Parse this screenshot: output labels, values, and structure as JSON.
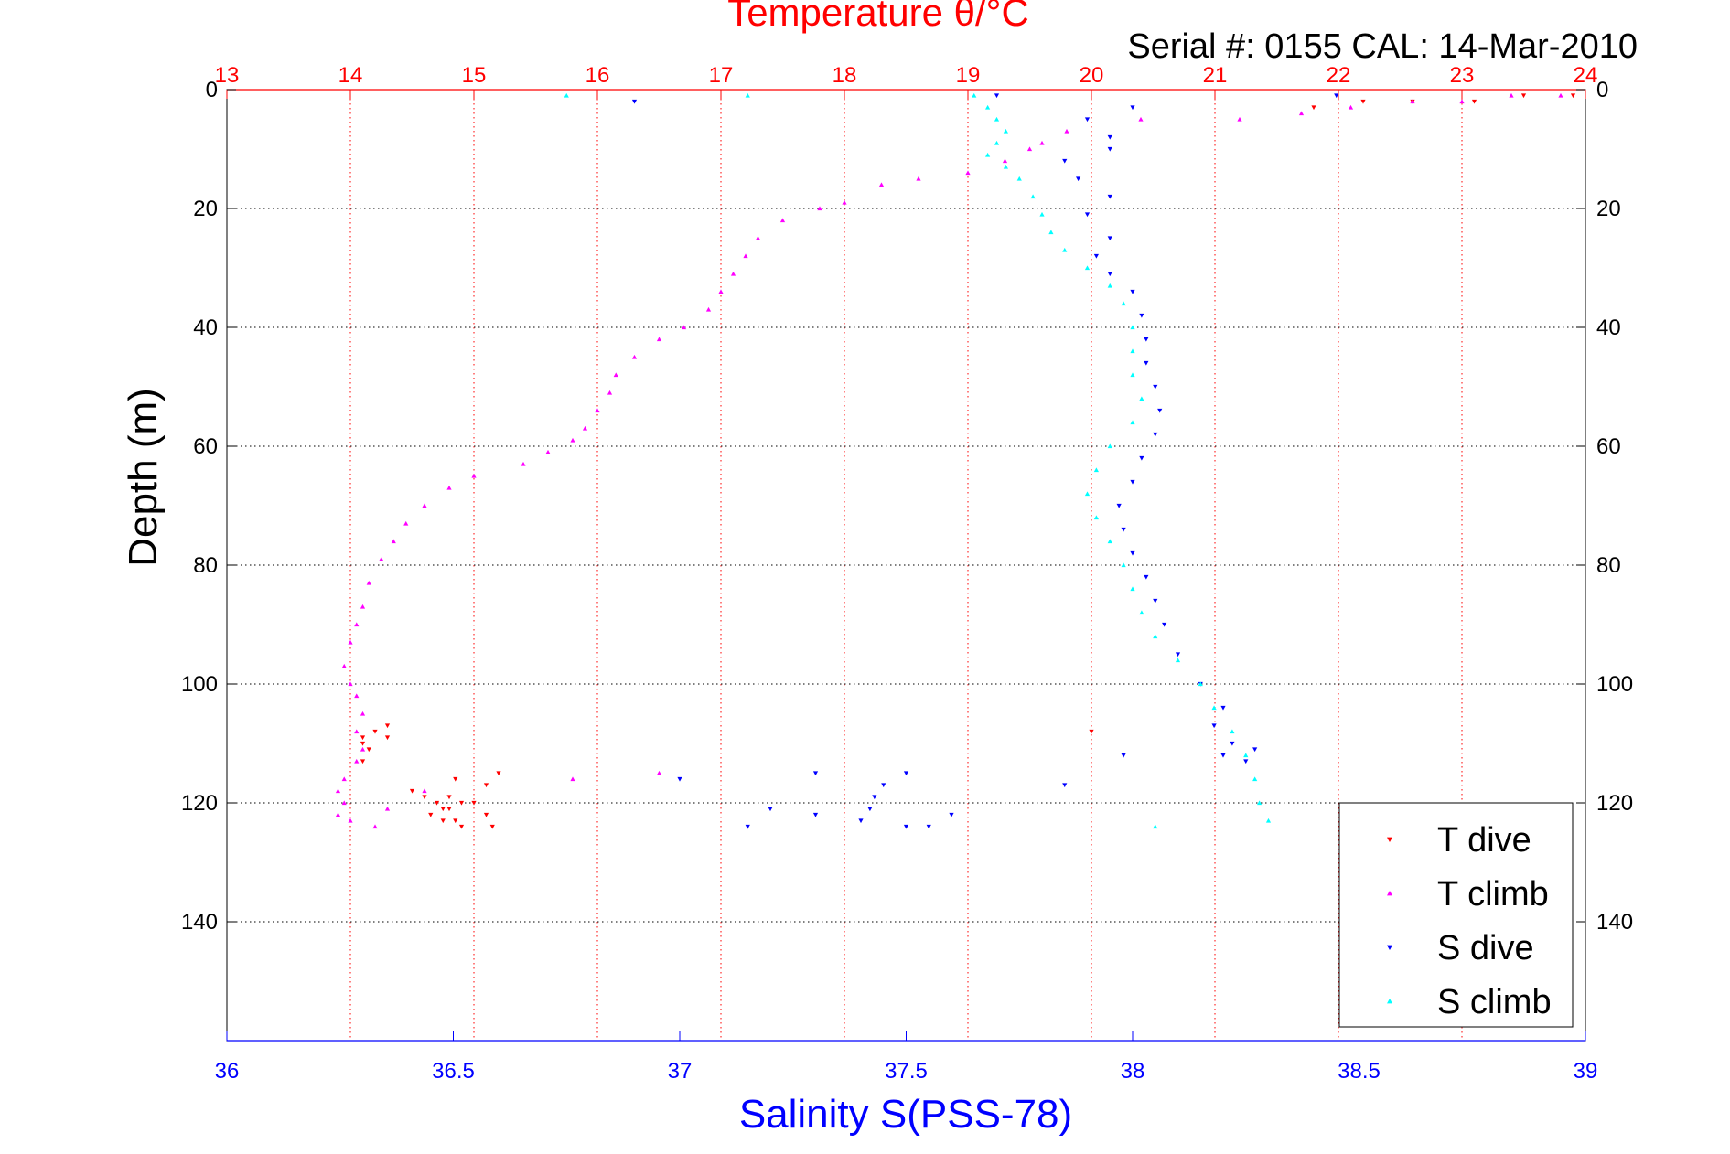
{
  "colors": {
    "t_dive": "#ff0000",
    "t_climb": "#ff00ff",
    "s_dive": "#0000ff",
    "s_climb": "#00ffff",
    "temp_axis": "#ff0000",
    "sal_axis": "#0000ff",
    "grid_temp": "#ff0000",
    "grid_depth": "#000000"
  },
  "header": {
    "temp_title": "Temperature θ/°C",
    "serial": "Serial #: 0155  CAL: 14-Mar-2010"
  },
  "chart_data": {
    "type": "scatter",
    "xlabel": "Salinity S(PSS-78)",
    "ylabel": "Depth (m)",
    "x2label": "Temperature θ/°C",
    "xlim": [
      36,
      39
    ],
    "x2lim": [
      13,
      24
    ],
    "ylim": [
      0,
      160
    ],
    "y_reversed": true,
    "x_ticks": [
      "36",
      "36.5",
      "37",
      "37.5",
      "38",
      "38.5",
      "39"
    ],
    "x2_ticks": [
      "13",
      "14",
      "15",
      "16",
      "17",
      "18",
      "19",
      "20",
      "21",
      "22",
      "23",
      "24"
    ],
    "y_ticks": [
      "0",
      "20",
      "40",
      "60",
      "80",
      "100",
      "120",
      "140"
    ],
    "grid": true,
    "legend_position": "bottom-right",
    "series": [
      {
        "name": "T dive",
        "axis": "temperature",
        "marker": "triangle-down",
        "color": "#ff0000",
        "points": [
          [
            23.9,
            1
          ],
          [
            23.5,
            1
          ],
          [
            23.1,
            2
          ],
          [
            22.6,
            2
          ],
          [
            22.2,
            2
          ],
          [
            21.8,
            3
          ],
          [
            14.1,
            113
          ],
          [
            14.15,
            111
          ],
          [
            14.1,
            109
          ],
          [
            14.2,
            108
          ],
          [
            14.1,
            110
          ],
          [
            14.3,
            107
          ],
          [
            14.3,
            109
          ],
          [
            14.5,
            118
          ],
          [
            14.6,
            119
          ],
          [
            14.7,
            120
          ],
          [
            14.75,
            121
          ],
          [
            14.8,
            119
          ],
          [
            14.9,
            120
          ],
          [
            14.65,
            122
          ],
          [
            14.75,
            123
          ],
          [
            14.9,
            124
          ],
          [
            15.0,
            120
          ],
          [
            15.1,
            122
          ],
          [
            15.2,
            115
          ],
          [
            15.1,
            117
          ],
          [
            14.85,
            116
          ],
          [
            15.15,
            124
          ],
          [
            14.8,
            121
          ],
          [
            14.85,
            123
          ],
          [
            20.0,
            108
          ]
        ]
      },
      {
        "name": "T climb",
        "axis": "temperature",
        "marker": "triangle-up",
        "color": "#ff00ff",
        "points": [
          [
            23.8,
            1
          ],
          [
            23.4,
            1
          ],
          [
            23.0,
            2
          ],
          [
            22.6,
            2
          ],
          [
            22.1,
            3
          ],
          [
            21.7,
            4
          ],
          [
            21.2,
            5
          ],
          [
            20.4,
            5
          ],
          [
            19.8,
            7
          ],
          [
            19.6,
            9
          ],
          [
            19.5,
            10
          ],
          [
            19.3,
            12
          ],
          [
            19.0,
            14
          ],
          [
            18.6,
            15
          ],
          [
            18.3,
            16
          ],
          [
            18.0,
            19
          ],
          [
            17.8,
            20
          ],
          [
            17.5,
            22
          ],
          [
            17.3,
            25
          ],
          [
            17.2,
            28
          ],
          [
            17.1,
            31
          ],
          [
            17.0,
            34
          ],
          [
            16.9,
            37
          ],
          [
            16.7,
            40
          ],
          [
            16.5,
            42
          ],
          [
            16.3,
            45
          ],
          [
            16.15,
            48
          ],
          [
            16.1,
            51
          ],
          [
            16.0,
            54
          ],
          [
            15.9,
            57
          ],
          [
            15.8,
            59
          ],
          [
            15.6,
            61
          ],
          [
            15.4,
            63
          ],
          [
            15.0,
            65
          ],
          [
            14.8,
            67
          ],
          [
            14.6,
            70
          ],
          [
            14.45,
            73
          ],
          [
            14.35,
            76
          ],
          [
            14.25,
            79
          ],
          [
            14.15,
            83
          ],
          [
            14.1,
            87
          ],
          [
            14.05,
            90
          ],
          [
            14.0,
            93
          ],
          [
            13.95,
            97
          ],
          [
            14.0,
            100
          ],
          [
            14.05,
            102
          ],
          [
            14.1,
            105
          ],
          [
            14.05,
            108
          ],
          [
            14.1,
            111
          ],
          [
            14.05,
            113
          ],
          [
            13.95,
            116
          ],
          [
            13.9,
            118
          ],
          [
            13.95,
            120
          ],
          [
            13.9,
            122
          ],
          [
            14.0,
            123
          ],
          [
            14.2,
            124
          ],
          [
            14.3,
            121
          ],
          [
            14.6,
            118
          ],
          [
            15.8,
            116
          ],
          [
            16.5,
            115
          ]
        ]
      },
      {
        "name": "S dive",
        "axis": "salinity",
        "marker": "triangle-down",
        "color": "#0000ff",
        "points": [
          [
            37.7,
            1
          ],
          [
            38.45,
            1
          ],
          [
            36.9,
            2
          ],
          [
            38.0,
            3
          ],
          [
            37.9,
            5
          ],
          [
            37.95,
            8
          ],
          [
            37.95,
            10
          ],
          [
            37.85,
            12
          ],
          [
            37.88,
            15
          ],
          [
            37.95,
            18
          ],
          [
            37.9,
            21
          ],
          [
            37.95,
            25
          ],
          [
            37.92,
            28
          ],
          [
            37.95,
            31
          ],
          [
            38.0,
            34
          ],
          [
            38.02,
            38
          ],
          [
            38.03,
            42
          ],
          [
            38.03,
            46
          ],
          [
            38.05,
            50
          ],
          [
            38.06,
            54
          ],
          [
            38.05,
            58
          ],
          [
            38.02,
            62
          ],
          [
            38.0,
            66
          ],
          [
            37.97,
            70
          ],
          [
            37.98,
            74
          ],
          [
            38.0,
            78
          ],
          [
            38.03,
            82
          ],
          [
            38.05,
            86
          ],
          [
            38.07,
            90
          ],
          [
            38.1,
            95
          ],
          [
            38.15,
            100
          ],
          [
            38.2,
            104
          ],
          [
            38.18,
            107
          ],
          [
            38.22,
            110
          ],
          [
            38.2,
            112
          ],
          [
            37.98,
            112
          ],
          [
            37.3,
            115
          ],
          [
            37.5,
            115
          ],
          [
            37.45,
            117
          ],
          [
            37.85,
            117
          ],
          [
            37.43,
            119
          ],
          [
            37.42,
            121
          ],
          [
            37.3,
            122
          ],
          [
            37.6,
            122
          ],
          [
            37.2,
            121
          ],
          [
            37.15,
            124
          ],
          [
            37.4,
            123
          ],
          [
            37.5,
            124
          ],
          [
            37.55,
            124
          ],
          [
            37.0,
            116
          ],
          [
            38.25,
            113
          ],
          [
            38.27,
            111
          ]
        ]
      },
      {
        "name": "S climb",
        "axis": "salinity",
        "marker": "triangle-up",
        "color": "#00ffff",
        "points": [
          [
            37.65,
            1
          ],
          [
            36.75,
            1
          ],
          [
            37.15,
            1
          ],
          [
            37.68,
            3
          ],
          [
            37.7,
            5
          ],
          [
            37.72,
            7
          ],
          [
            37.7,
            9
          ],
          [
            37.68,
            11
          ],
          [
            37.72,
            13
          ],
          [
            37.75,
            15
          ],
          [
            37.78,
            18
          ],
          [
            37.8,
            21
          ],
          [
            37.82,
            24
          ],
          [
            37.85,
            27
          ],
          [
            37.9,
            30
          ],
          [
            37.95,
            33
          ],
          [
            37.98,
            36
          ],
          [
            38.0,
            40
          ],
          [
            38.0,
            44
          ],
          [
            38.0,
            48
          ],
          [
            38.02,
            52
          ],
          [
            38.0,
            56
          ],
          [
            37.95,
            60
          ],
          [
            37.92,
            64
          ],
          [
            37.9,
            68
          ],
          [
            37.92,
            72
          ],
          [
            37.95,
            76
          ],
          [
            37.98,
            80
          ],
          [
            38.0,
            84
          ],
          [
            38.02,
            88
          ],
          [
            38.05,
            92
          ],
          [
            38.1,
            96
          ],
          [
            38.15,
            100
          ],
          [
            38.18,
            104
          ],
          [
            38.22,
            108
          ],
          [
            38.25,
            112
          ],
          [
            38.27,
            116
          ],
          [
            38.28,
            120
          ],
          [
            38.3,
            123
          ],
          [
            38.05,
            124
          ]
        ]
      }
    ]
  }
}
